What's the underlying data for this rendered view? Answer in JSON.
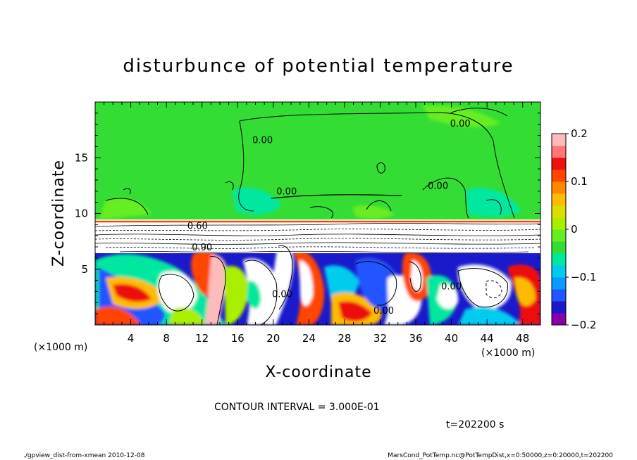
{
  "chart_data": {
    "type": "heatmap",
    "title": "disturbunce of potential temperature",
    "xlabel": "X-coordinate",
    "ylabel": "Z-coordinate",
    "x_unit_left": "(×1000 m)",
    "x_unit_right": "(×1000 m)",
    "xlim": [
      0,
      50
    ],
    "ylim": [
      0,
      20
    ],
    "x_ticks": [
      "4",
      "8",
      "12",
      "16",
      "20",
      "24",
      "28",
      "32",
      "36",
      "40",
      "44",
      "48"
    ],
    "x_tick_values": [
      4,
      8,
      12,
      16,
      20,
      24,
      28,
      32,
      36,
      40,
      44,
      48
    ],
    "y_ticks": [
      "5",
      "10",
      "15"
    ],
    "y_tick_values": [
      5,
      10,
      15
    ],
    "colorbar": {
      "min": -0.2,
      "max": 0.2,
      "tick_labels": [
        "0.2",
        "0.1",
        "0",
        "−0.1",
        "−0.2"
      ],
      "tick_values": [
        0.2,
        0.1,
        0,
        -0.1,
        -0.2
      ],
      "colors": [
        "#8800aa",
        "#1a1acc",
        "#2255ff",
        "#0a9aff",
        "#00ccee",
        "#00e8a0",
        "#33dd33",
        "#66ee22",
        "#aaee00",
        "#dddd00",
        "#ffbb00",
        "#ff8800",
        "#ff4400",
        "#ee1111",
        "#ff7777",
        "#ffbbbb"
      ]
    },
    "contour_labels": [
      {
        "text": "0.00",
        "x": 41,
        "z": 17.8
      },
      {
        "text": "0.00",
        "x": 18.8,
        "z": 16.3
      },
      {
        "text": "0.00",
        "x": 21.5,
        "z": 11.7
      },
      {
        "text": "0.00",
        "x": 38.5,
        "z": 12.2
      },
      {
        "text": "0.60",
        "x": 11.5,
        "z": 8.6
      },
      {
        "text": "0.90",
        "x": 12.0,
        "z": 6.7
      },
      {
        "text": "0.00",
        "x": 40,
        "z": 3.2
      },
      {
        "text": "0.00",
        "x": 32.4,
        "z": 1.0
      },
      {
        "text": "0.00",
        "x": 21,
        "z": 2.5
      }
    ]
  },
  "contour_interval_text": "CONTOUR INTERVAL = 3.000E-01",
  "time_text": "t=202200 s",
  "footer_left": "./gpview_dist-from-xmean   2010-12-08",
  "footer_right": "MarsCond_PotTemp.nc@PotTempDist,x=0:50000,z=0:20000,t=202200"
}
